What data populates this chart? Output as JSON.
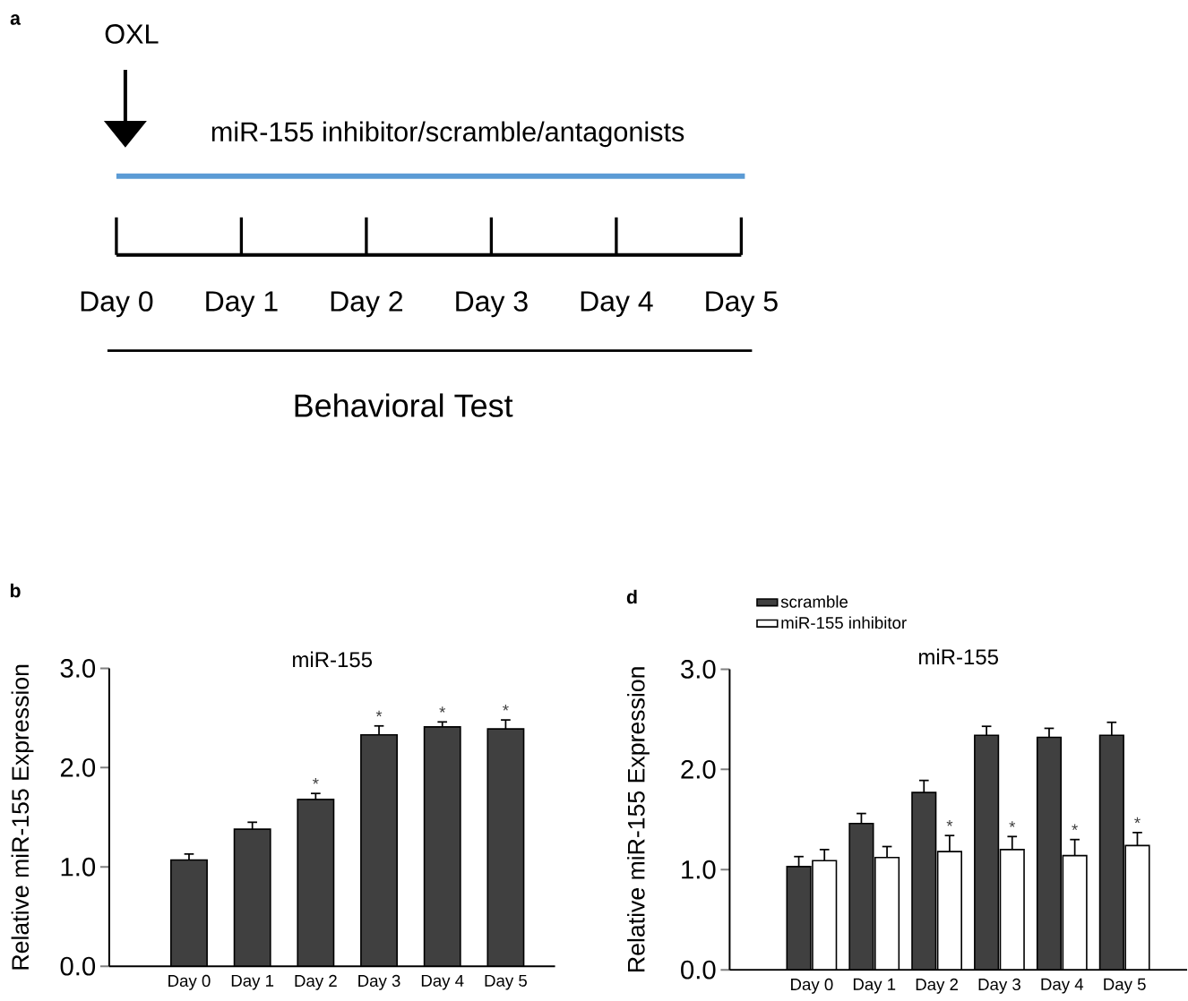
{
  "chart_data": [
    {
      "type": "other",
      "categories": [
        "Day 0",
        "Day 1",
        "Day 2",
        "Day 3",
        "Day 4",
        "Day 5"
      ],
      "annotations": [
        "a",
        "OXL",
        "miR-155 inhibitor/scramble/antagonists",
        "Behavioral Test"
      ]
    },
    {
      "type": "bar",
      "title": "miR-155",
      "ylabel": "Relative miR-155 Expression",
      "categories": [
        "Day 0",
        "Day 1",
        "Day 2",
        "Day 3",
        "Day 4",
        "Day 5"
      ],
      "values": [
        1.07,
        1.38,
        1.68,
        2.33,
        2.41,
        2.39
      ],
      "errors": [
        0.06,
        0.07,
        0.06,
        0.09,
        0.05,
        0.09
      ],
      "color": "#404040",
      "ylim": [
        0,
        3.0
      ],
      "yticks": [
        {
          "value": 0,
          "label": "0.0"
        },
        {
          "value": 1,
          "label": "1.0"
        },
        {
          "value": 2,
          "label": "2.0"
        },
        {
          "value": 3,
          "label": "3.0"
        }
      ],
      "annotations": [
        "b",
        {
          "text": "*",
          "x": "Day 2",
          "y": 1.68
        },
        {
          "text": "*",
          "x": "Day 3",
          "y": 2.33
        },
        {
          "text": "*",
          "x": "Day 4",
          "y": 2.41
        },
        {
          "text": "*",
          "x": "Day 5",
          "y": 2.39
        }
      ]
    },
    {
      "type": "bar",
      "title": "miR-155",
      "ylabel": "Relative miR-155 Expression",
      "categories": [
        "Day 0",
        "Day 1",
        "Day 2",
        "Day 3",
        "Day 4",
        "Day 5"
      ],
      "legend": "top left",
      "ylim": [
        0,
        3.0
      ],
      "yticks": [
        {
          "value": 0,
          "label": "0.0"
        },
        {
          "value": 1,
          "label": "1.0"
        },
        {
          "value": 2,
          "label": "2.0"
        },
        {
          "value": 3,
          "label": "3.0"
        }
      ],
      "series": [
        {
          "name": "scramble",
          "color": "#404040",
          "values": [
            1.03,
            1.46,
            1.77,
            2.34,
            2.32,
            2.34
          ],
          "errors": [
            0.1,
            0.1,
            0.12,
            0.09,
            0.09,
            0.13
          ]
        },
        {
          "name": "miR-155 inhibitor",
          "color": "#ffffff",
          "values": [
            1.09,
            1.12,
            1.18,
            1.2,
            1.14,
            1.24
          ],
          "errors": [
            0.11,
            0.11,
            0.16,
            0.13,
            0.16,
            0.13
          ]
        }
      ],
      "annotations": [
        "d",
        {
          "text": "*",
          "x": "Day 2",
          "y": 1.18
        },
        {
          "text": "*",
          "x": "Day 3",
          "y": 1.2
        },
        {
          "text": "*",
          "x": "Day 4",
          "y": 1.14
        },
        {
          "text": "*",
          "x": "Day 5",
          "y": 1.24
        }
      ]
    }
  ]
}
